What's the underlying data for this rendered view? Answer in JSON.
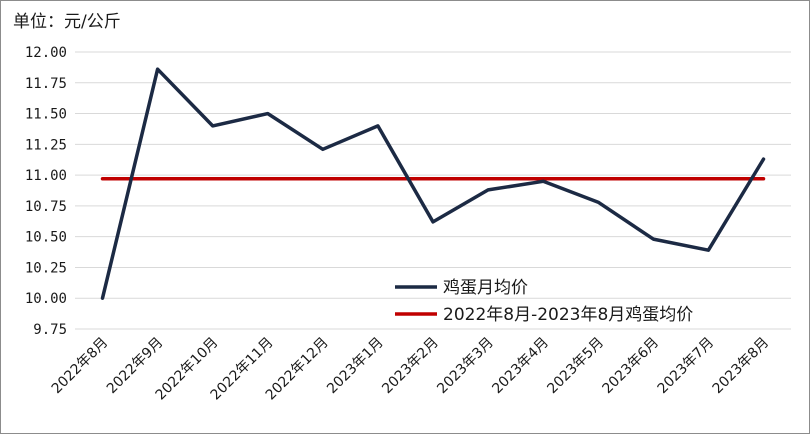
{
  "chart_data": {
    "type": "line",
    "unit_label": "单位：元/公斤",
    "categories": [
      "2022年8月",
      "2022年9月",
      "2022年10月",
      "2022年11月",
      "2022年12月",
      "2023年1月",
      "2023年2月",
      "2023年3月",
      "2023年4月",
      "2023年5月",
      "2023年6月",
      "2023年7月",
      "2023年8月"
    ],
    "series": [
      {
        "name": "鸡蛋月均价",
        "color": "#1c2a44",
        "values": [
          10.0,
          11.86,
          11.4,
          11.5,
          11.21,
          11.4,
          10.62,
          10.88,
          10.95,
          10.78,
          10.48,
          10.39,
          11.13
        ]
      },
      {
        "name": "2022年8月-2023年8月鸡蛋均价",
        "color": "#c00000",
        "values": [
          10.97,
          10.97,
          10.97,
          10.97,
          10.97,
          10.97,
          10.97,
          10.97,
          10.97,
          10.97,
          10.97,
          10.97,
          10.97
        ]
      }
    ],
    "ylim": [
      9.75,
      12.0
    ],
    "yticks": [
      "12.00",
      "11.75",
      "11.50",
      "11.25",
      "11.00",
      "10.75",
      "10.50",
      "10.25",
      "10.00",
      "9.75"
    ],
    "grid": true,
    "legend_position": "bottom-right"
  }
}
